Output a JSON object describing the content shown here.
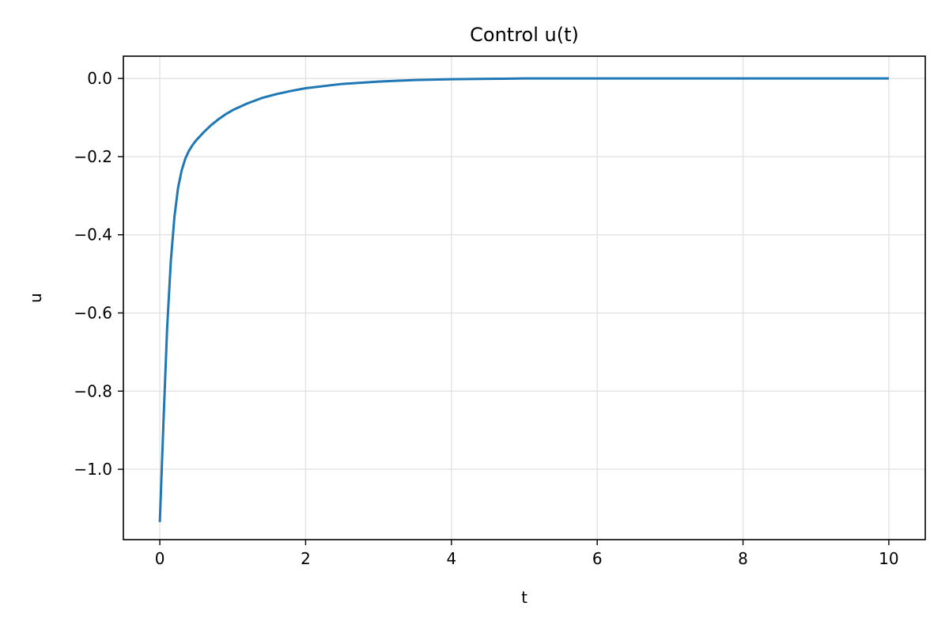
{
  "chart_data": {
    "type": "line",
    "title": "Control u(t)",
    "xlabel": "t",
    "ylabel": "u",
    "xlim": [
      -0.5,
      10.5
    ],
    "ylim": [
      -1.18,
      0.057
    ],
    "x_ticks": [
      0,
      2,
      4,
      6,
      8,
      10
    ],
    "x_tick_labels": [
      "0",
      "2",
      "4",
      "6",
      "8",
      "10"
    ],
    "y_ticks": [
      0.0,
      -0.2,
      -0.4,
      -0.6,
      -0.8,
      -1.0
    ],
    "y_tick_labels": [
      "0.0",
      "−0.2",
      "−0.4",
      "−0.6",
      "−0.8",
      "−1.0"
    ],
    "grid": true,
    "series": [
      {
        "color": "#1f77b4",
        "x": [
          0,
          0.05,
          0.1,
          0.15,
          0.2,
          0.25,
          0.3,
          0.35,
          0.4,
          0.45,
          0.5,
          0.6,
          0.7,
          0.8,
          0.9,
          1.0,
          1.2,
          1.4,
          1.6,
          1.8,
          2.0,
          2.5,
          3.0,
          3.5,
          4.0,
          4.5,
          5.0,
          6.0,
          7.0,
          8.0,
          9.0,
          10.0
        ],
        "y": [
          -1.135,
          -0.88,
          -0.64,
          -0.47,
          -0.355,
          -0.28,
          -0.235,
          -0.205,
          -0.185,
          -0.17,
          -0.158,
          -0.138,
          -0.12,
          -0.105,
          -0.092,
          -0.081,
          -0.064,
          -0.05,
          -0.04,
          -0.032,
          -0.025,
          -0.014,
          -0.008,
          -0.004,
          -0.002,
          -0.001,
          0.0,
          0.0,
          0.0,
          0.0,
          0.0,
          0.0
        ]
      }
    ]
  }
}
